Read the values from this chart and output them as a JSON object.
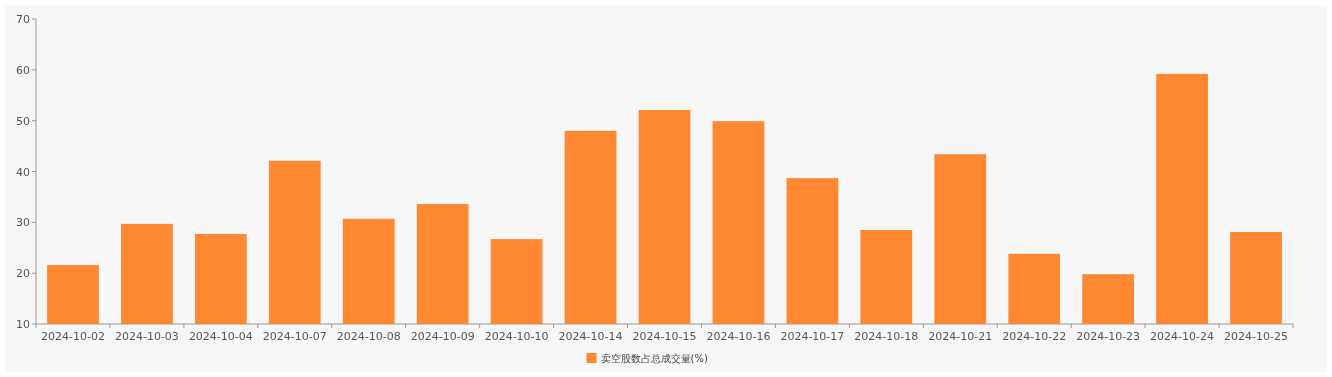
{
  "chart_data": {
    "type": "bar",
    "categories": [
      "2024-10-02",
      "2024-10-03",
      "2024-10-04",
      "2024-10-07",
      "2024-10-08",
      "2024-10-09",
      "2024-10-10",
      "2024-10-14",
      "2024-10-15",
      "2024-10-16",
      "2024-10-17",
      "2024-10-18",
      "2024-10-21",
      "2024-10-22",
      "2024-10-23",
      "2024-10-24",
      "2024-10-25"
    ],
    "series": [
      {
        "name": "卖空股数占总成交量(%)",
        "color": "#ff8833",
        "values": [
          21.6,
          29.7,
          27.7,
          42.1,
          30.7,
          33.6,
          26.7,
          48.0,
          52.1,
          49.9,
          38.7,
          28.5,
          43.4,
          23.8,
          19.8,
          59.2,
          28.1
        ]
      }
    ],
    "ylim": [
      10,
      70
    ],
    "yticks": [
      10,
      20,
      30,
      40,
      50,
      60,
      70
    ],
    "grid": false,
    "legend": "bottom"
  }
}
